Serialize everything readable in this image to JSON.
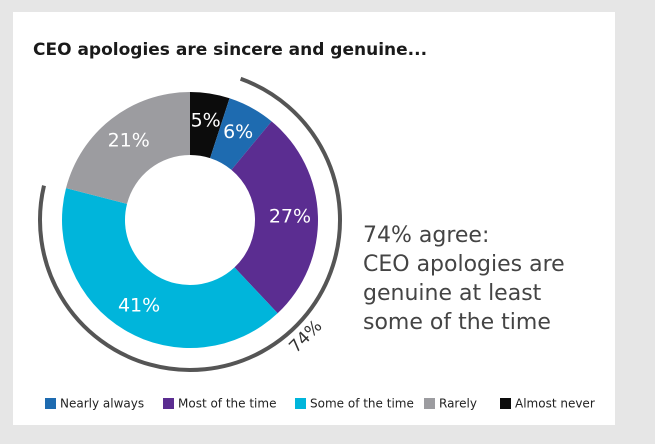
{
  "chart_data": {
    "type": "donut",
    "title": "CEO apologies are sincere and genuine...",
    "categories": [
      "Almost never",
      "Nearly always",
      "Most of the time",
      "Some of the time",
      "Rarely"
    ],
    "values": [
      5,
      6,
      27,
      41,
      21
    ],
    "value_labels": [
      "5%",
      "6%",
      "27%",
      "41%",
      "21%"
    ],
    "colors": [
      "#0c0c0c",
      "#1e6bb0",
      "#5b2d91",
      "#00b5db",
      "#9c9ca0"
    ],
    "legend_order": [
      "Nearly always",
      "Most of the time",
      "Some of the time",
      "Rarely",
      "Almost never"
    ],
    "arc_label": "74%",
    "annotation": [
      "74% agree:",
      "CEO apologies are",
      "genuine at least",
      "some of the time"
    ]
  }
}
